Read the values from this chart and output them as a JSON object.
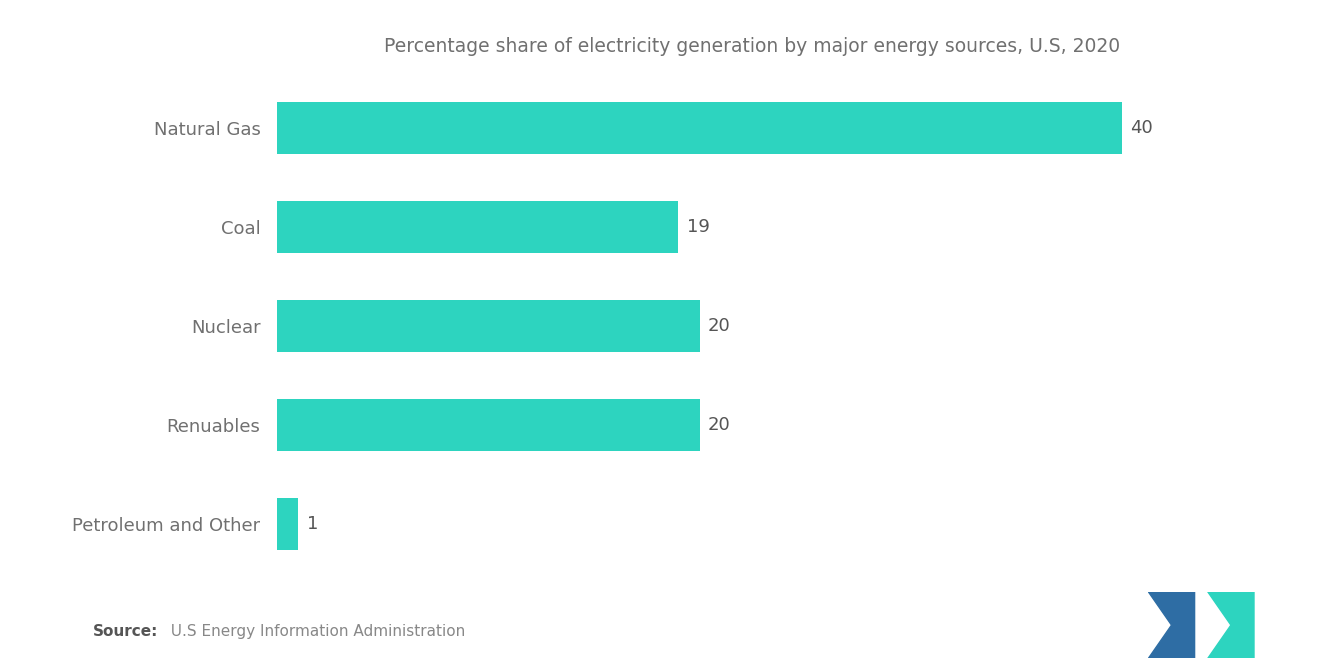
{
  "title": "Percentage share of electricity generation by major energy sources, U.S, 2020",
  "categories": [
    "Natural Gas",
    "Coal",
    "Nuclear",
    "Renuables",
    "Petroleum and Other"
  ],
  "values": [
    40,
    19,
    20,
    20,
    1
  ],
  "bar_color": "#2DD4BF",
  "label_color": "#707070",
  "value_label_color": "#555555",
  "background_color": "#FFFFFF",
  "title_fontsize": 13.5,
  "label_fontsize": 13,
  "value_fontsize": 13,
  "source_bold": "Source:",
  "source_rest": "  U.S Energy Information Administration",
  "xlim": [
    0,
    45
  ],
  "bar_height": 0.52
}
